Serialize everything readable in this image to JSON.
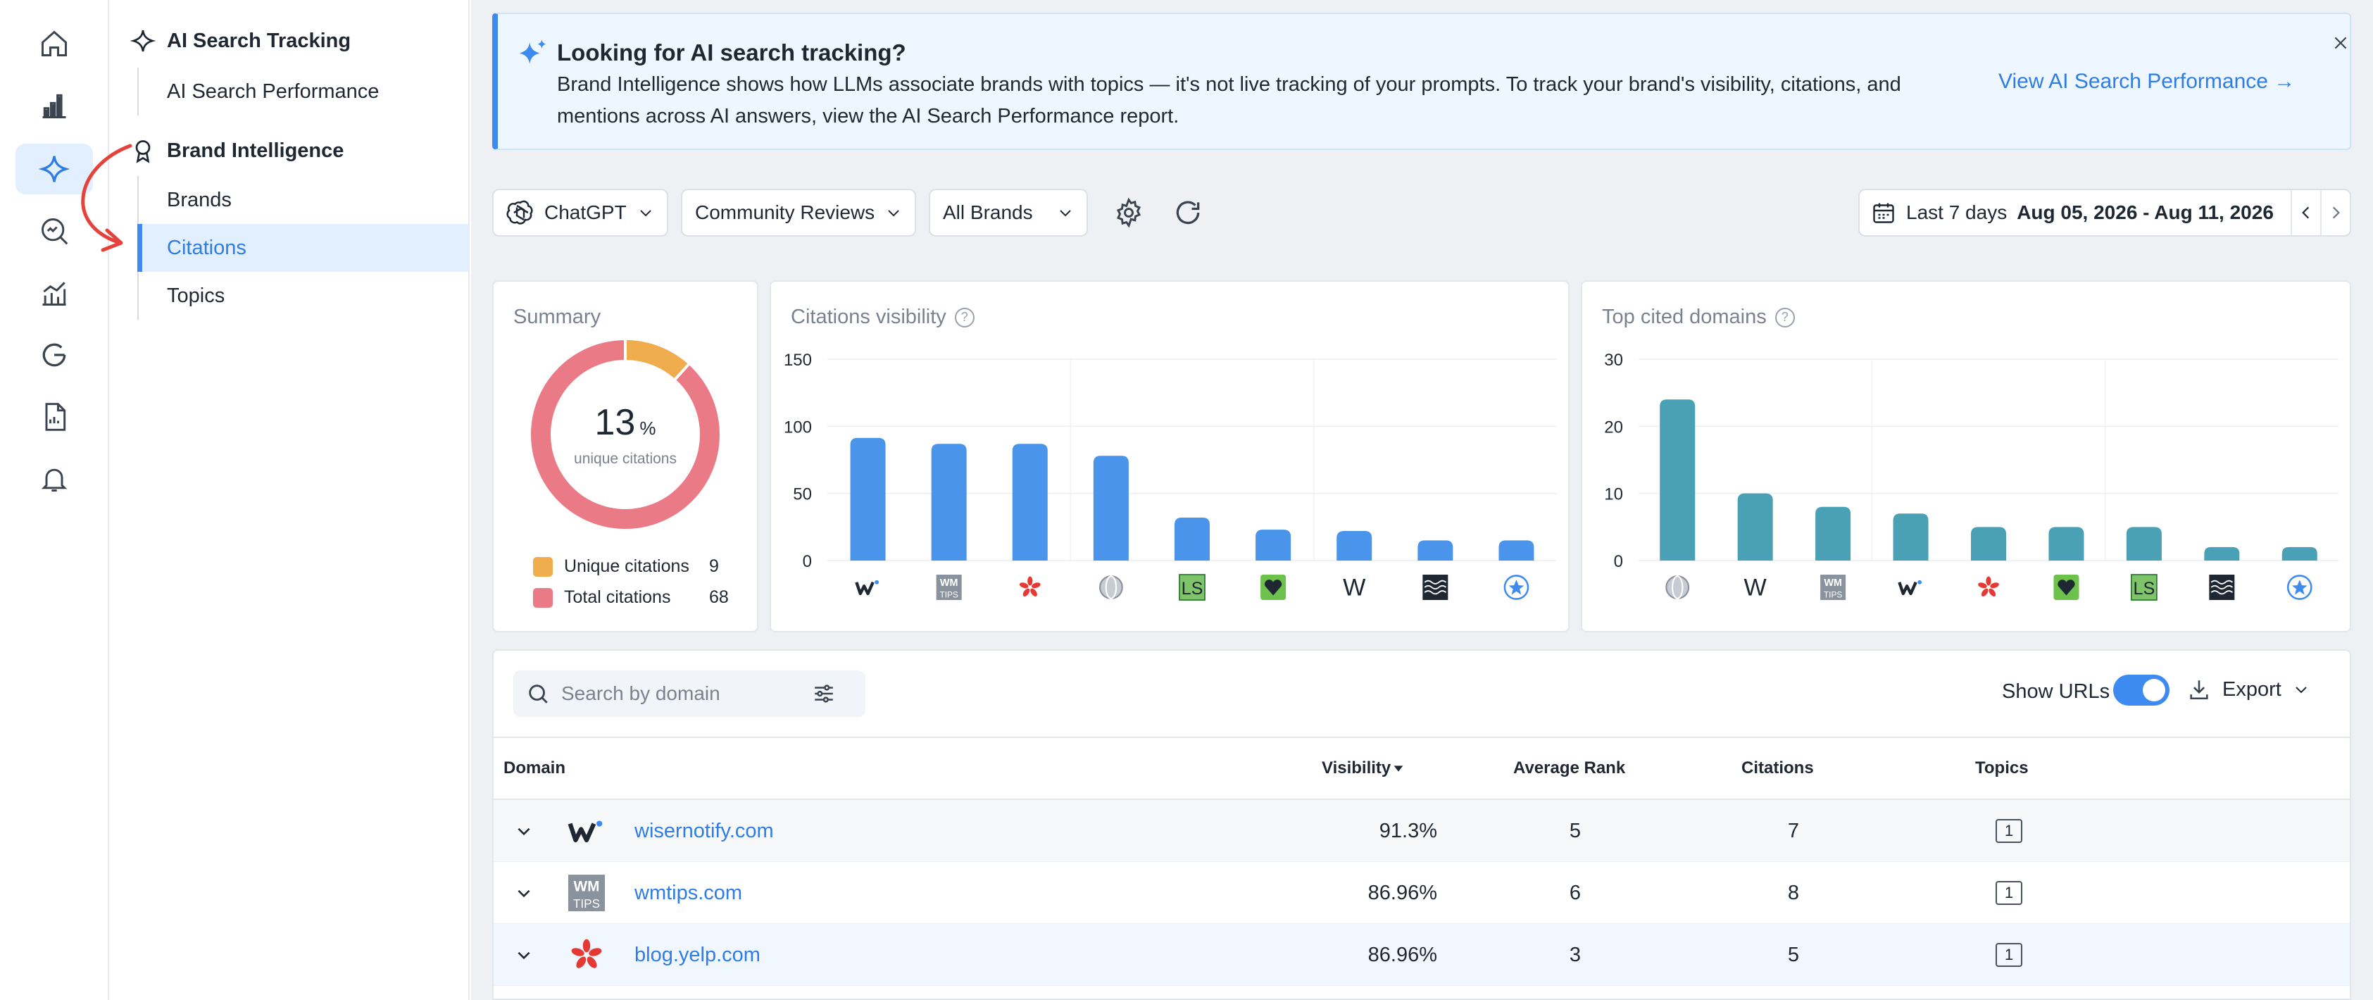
{
  "rail": {
    "items": [
      {
        "icon": "home-icon"
      },
      {
        "icon": "bar-chart-icon"
      },
      {
        "icon": "sparkle-icon",
        "active": true
      },
      {
        "icon": "search-analytics-icon"
      },
      {
        "icon": "trend-chart-icon"
      },
      {
        "icon": "google-icon"
      },
      {
        "icon": "report-icon"
      },
      {
        "icon": "bell-icon"
      }
    ]
  },
  "subnav": {
    "group1": "AI Search Tracking",
    "group1_items": [
      "AI Search Performance"
    ],
    "group2": "Brand Intelligence",
    "group2_items": [
      "Brands",
      "Citations",
      "Topics"
    ],
    "active_item": "Citations"
  },
  "banner": {
    "title": "Looking for AI search tracking?",
    "text": "Brand Intelligence shows how LLMs associate brands with topics — it's not live tracking of your prompts. To track your brand's visibility, citations, and mentions across AI answers, view the AI Search Performance report.",
    "link": "View AI Search Performance →"
  },
  "toolbar": {
    "llm": "ChatGPT",
    "category": "Community Reviews",
    "brands": "All Brands",
    "date_range_label": "Last 7 days",
    "date_range": "Aug 05, 2026 - Aug 11, 2026"
  },
  "summary": {
    "title": "Summary",
    "percent": "13",
    "percent_unit": "%",
    "center_label": "unique citations",
    "unique_label": "Unique citations",
    "unique_value": "9",
    "total_label": "Total citations",
    "total_value": "68",
    "colors": {
      "unique": "#f0ad4e",
      "total": "#ea7b86"
    }
  },
  "chart_data": [
    {
      "type": "bar",
      "title": "Citations visibility",
      "categories": [
        "wisernotify.com",
        "wmtips.com",
        "blog.yelp.com",
        "globe",
        "LS",
        "heart-favicon",
        "wikipedia",
        "wave",
        "star"
      ],
      "values": [
        91.3,
        86.96,
        86.96,
        78,
        32,
        23,
        22,
        15,
        15
      ],
      "ylim": [
        0,
        150
      ],
      "yticks": [
        0,
        50,
        100,
        150
      ],
      "color": "#4a94ec"
    },
    {
      "type": "bar",
      "title": "Top cited domains",
      "categories": [
        "globe",
        "wikipedia",
        "wmtips",
        "wisernotify",
        "yelp",
        "heart-favicon",
        "LS",
        "wave",
        "star"
      ],
      "values": [
        24,
        10,
        8,
        7,
        5,
        5,
        5,
        2,
        2
      ],
      "ylim": [
        0,
        30
      ],
      "yticks": [
        0,
        10,
        20,
        30
      ],
      "color": "#4aa0b5"
    }
  ],
  "table": {
    "search_placeholder": "Search by domain",
    "show_urls_label": "Show URLs",
    "export_label": "Export",
    "columns": {
      "domain": "Domain",
      "visibility": "Visibility",
      "avg_rank": "Average Rank",
      "citations": "Citations",
      "topics": "Topics"
    },
    "rows": [
      {
        "domain": "wisernotify.com",
        "visibility": "91.3%",
        "avg_rank": "5",
        "citations": "7",
        "topics": "1"
      },
      {
        "domain": "wmtips.com",
        "visibility": "86.96%",
        "avg_rank": "6",
        "citations": "8",
        "topics": "1"
      },
      {
        "domain": "blog.yelp.com",
        "visibility": "86.96%",
        "avg_rank": "3",
        "citations": "5",
        "topics": "1"
      }
    ]
  }
}
